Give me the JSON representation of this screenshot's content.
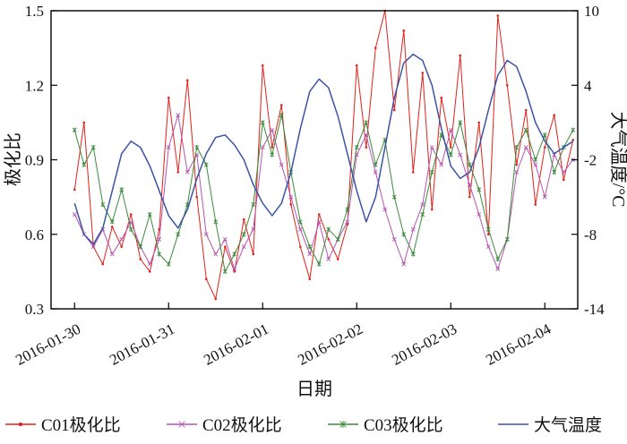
{
  "figure": {
    "xlabel": "日期",
    "ylabel_left": "极化比",
    "ylabel_right": "大气温度/°C"
  },
  "legend": {
    "position": "bottom",
    "items": [
      {
        "label": "C01极化比",
        "color": "#e32119",
        "marker": "dot"
      },
      {
        "label": "C02极化比",
        "color": "#b455b0",
        "marker": "x"
      },
      {
        "label": "C03极化比",
        "color": "#3c8a3c",
        "marker": "star"
      },
      {
        "label": "大气温度",
        "color": "#3b53a5",
        "marker": "none"
      }
    ]
  },
  "chart_data": {
    "type": "line",
    "title": "",
    "xlabel": "日期",
    "ylabel_left": "极化比",
    "ylabel_right": "大气温度/°C",
    "grid": "off",
    "legend_position": "bottom",
    "xlim": [
      -0.25,
      5.35
    ],
    "x_ticks": [
      0,
      1,
      2,
      3,
      4,
      5
    ],
    "x_tick_labels": [
      "2016-01-30",
      "2016-01-31",
      "2016-02-01",
      "2016-02-02",
      "2016-02-03",
      "2016-02-04"
    ],
    "ylim_left": [
      0.3,
      1.5
    ],
    "ytick_labels_left": [
      "0.3",
      "0.6",
      "0.9",
      "1.2",
      "1.5"
    ],
    "yticks_left": [
      0.3,
      0.6,
      0.9,
      1.2,
      1.5
    ],
    "ylim_right": [
      -14,
      10
    ],
    "ytick_labels_right": [
      "-14",
      "-8",
      "-2",
      "4",
      "10"
    ],
    "yticks_right": [
      -14,
      -8,
      -2,
      4,
      10
    ],
    "x_unit": "days since 2016-01-30 00:00",
    "x": [
      0,
      0.1,
      0.2,
      0.3,
      0.4,
      0.5,
      0.6,
      0.7,
      0.8,
      0.9,
      1,
      1.1,
      1.2,
      1.3,
      1.4,
      1.5,
      1.6,
      1.7,
      1.8,
      1.9,
      2,
      2.1,
      2.2,
      2.3,
      2.4,
      2.5,
      2.6,
      2.7,
      2.8,
      2.9,
      3,
      3.1,
      3.2,
      3.3,
      3.4,
      3.5,
      3.6,
      3.7,
      3.8,
      3.9,
      4,
      4.1,
      4.2,
      4.3,
      4.4,
      4.5,
      4.6,
      4.7,
      4.8,
      4.9,
      5,
      5.1,
      5.2,
      5.3
    ],
    "series": [
      {
        "name": "C01极化比",
        "axis": "left",
        "color": "#e32119",
        "marker": "dot",
        "width": 1,
        "values": [
          0.78,
          1.05,
          0.55,
          0.48,
          0.63,
          0.55,
          0.68,
          0.5,
          0.45,
          0.62,
          1.15,
          0.85,
          1.22,
          0.75,
          0.42,
          0.34,
          0.55,
          0.45,
          0.66,
          0.52,
          1.28,
          0.95,
          1.12,
          0.72,
          0.55,
          0.42,
          0.68,
          0.58,
          0.5,
          0.64,
          1.28,
          0.95,
          1.35,
          1.5,
          1.1,
          1.42,
          0.85,
          1.25,
          0.7,
          1.15,
          0.95,
          1.32,
          0.75,
          1.05,
          0.6,
          1.48,
          1.2,
          0.88,
          1.1,
          0.72,
          0.95,
          1.08,
          0.82,
          0.98
        ]
      },
      {
        "name": "C02极化比",
        "axis": "left",
        "color": "#b455b0",
        "marker": "x",
        "width": 1,
        "values": [
          0.68,
          0.6,
          0.55,
          0.62,
          0.52,
          0.58,
          0.65,
          0.55,
          0.48,
          0.58,
          0.95,
          1.08,
          0.85,
          0.92,
          0.6,
          0.52,
          0.58,
          0.46,
          0.55,
          0.62,
          0.95,
          1.02,
          0.88,
          0.75,
          0.62,
          0.52,
          0.65,
          0.5,
          0.58,
          0.65,
          0.92,
          1.0,
          0.85,
          0.7,
          0.58,
          0.48,
          0.62,
          0.72,
          0.95,
          0.88,
          1.02,
          0.92,
          0.8,
          0.68,
          0.55,
          0.46,
          0.58,
          0.85,
          0.95,
          0.88,
          0.75,
          0.92,
          0.85,
          0.9
        ]
      },
      {
        "name": "C03极化比",
        "axis": "left",
        "color": "#3c8a3c",
        "marker": "star",
        "width": 1,
        "values": [
          1.02,
          0.88,
          0.95,
          0.72,
          0.65,
          0.78,
          0.62,
          0.55,
          0.68,
          0.52,
          0.48,
          0.6,
          0.72,
          0.95,
          0.88,
          0.65,
          0.45,
          0.52,
          0.6,
          0.72,
          1.05,
          0.92,
          1.08,
          0.85,
          0.65,
          0.55,
          0.48,
          0.62,
          0.58,
          0.7,
          0.95,
          1.05,
          0.88,
          0.98,
          0.75,
          0.6,
          0.52,
          0.68,
          0.85,
          1.0,
          0.92,
          1.05,
          0.88,
          0.78,
          0.62,
          0.5,
          0.58,
          0.95,
          1.02,
          0.9,
          1.0,
          0.85,
          0.95,
          1.02
        ]
      },
      {
        "name": "大气温度",
        "axis": "right",
        "color": "#3b53a5",
        "marker": "none",
        "width": 1.5,
        "values": [
          -5.5,
          -8.0,
          -8.8,
          -7.5,
          -4.5,
          -1.5,
          -0.5,
          -1.0,
          -2.5,
          -4.5,
          -6.5,
          -7.5,
          -6.0,
          -3.5,
          -1.5,
          -0.2,
          0.0,
          -0.8,
          -2.0,
          -4.0,
          -5.5,
          -6.5,
          -5.5,
          -3.0,
          0.5,
          3.5,
          4.5,
          3.8,
          1.5,
          -1.5,
          -4.5,
          -7.0,
          -5.0,
          -1.0,
          3.0,
          5.8,
          6.5,
          6.0,
          4.0,
          0.5,
          -2.5,
          -3.5,
          -3.0,
          -1.0,
          2.0,
          4.8,
          6.0,
          5.5,
          3.5,
          1.0,
          -0.5,
          -1.5,
          -1.0,
          -0.5
        ]
      }
    ]
  }
}
